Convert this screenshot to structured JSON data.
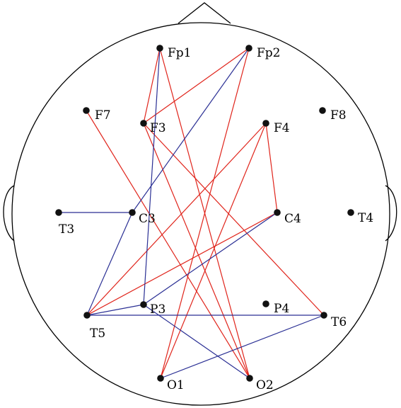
{
  "electrodes": [
    {
      "id": "Fp1",
      "label": "Fp1"
    },
    {
      "id": "Fp2",
      "label": "Fp2"
    },
    {
      "id": "F7",
      "label": "F7"
    },
    {
      "id": "F3",
      "label": "F3"
    },
    {
      "id": "F4",
      "label": "F4"
    },
    {
      "id": "F8",
      "label": "F8"
    },
    {
      "id": "T3",
      "label": "T3"
    },
    {
      "id": "C3",
      "label": "C3"
    },
    {
      "id": "C4",
      "label": "C4"
    },
    {
      "id": "T4",
      "label": "T4"
    },
    {
      "id": "T5",
      "label": "T5"
    },
    {
      "id": "P3",
      "label": "P3"
    },
    {
      "id": "P4",
      "label": "P4"
    },
    {
      "id": "T6",
      "label": "T6"
    },
    {
      "id": "O1",
      "label": "O1"
    },
    {
      "id": "O2",
      "label": "O2"
    }
  ],
  "connections": [
    {
      "from": "Fp1",
      "to": "F3",
      "group": "red"
    },
    {
      "from": "Fp1",
      "to": "O2",
      "group": "red"
    },
    {
      "from": "Fp2",
      "to": "F3",
      "group": "red"
    },
    {
      "from": "Fp2",
      "to": "O1",
      "group": "red"
    },
    {
      "from": "F7",
      "to": "O2",
      "group": "red"
    },
    {
      "from": "F3",
      "to": "O2",
      "group": "red"
    },
    {
      "from": "F3",
      "to": "T6",
      "group": "red"
    },
    {
      "from": "F4",
      "to": "C4",
      "group": "red"
    },
    {
      "from": "F4",
      "to": "T5",
      "group": "red"
    },
    {
      "from": "F4",
      "to": "O1",
      "group": "red"
    },
    {
      "from": "C4",
      "to": "T5",
      "group": "red"
    },
    {
      "from": "Fp1",
      "to": "P3",
      "group": "blue"
    },
    {
      "from": "Fp2",
      "to": "C3",
      "group": "blue"
    },
    {
      "from": "T3",
      "to": "C3",
      "group": "blue"
    },
    {
      "from": "C3",
      "to": "T5",
      "group": "blue"
    },
    {
      "from": "C4",
      "to": "P3",
      "group": "blue"
    },
    {
      "from": "T5",
      "to": "P3",
      "group": "blue"
    },
    {
      "from": "T5",
      "to": "T6",
      "group": "blue"
    },
    {
      "from": "P3",
      "to": "O2",
      "group": "blue"
    },
    {
      "from": "O1",
      "to": "T6",
      "group": "blue"
    }
  ],
  "colors": {
    "red": "#e0241b",
    "blue": "#2a2f94",
    "outline": "#000000",
    "node": "#111111"
  }
}
